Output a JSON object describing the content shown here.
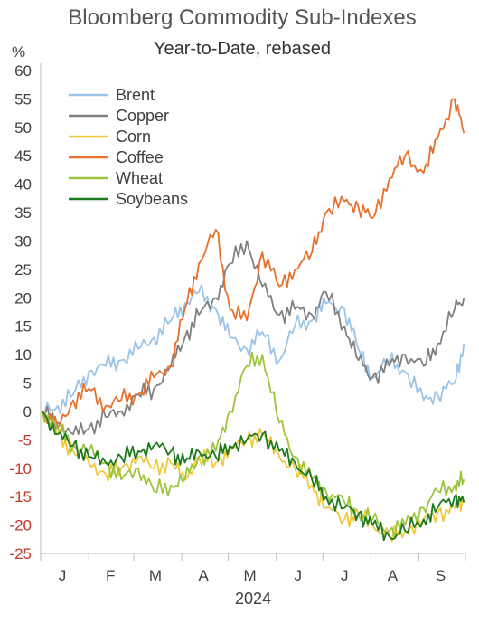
{
  "chart_data": {
    "type": "line",
    "title": "Bloomberg Commodity Sub-Indexes",
    "subtitle": "Year-to-Date, rebased",
    "ylabel": "%",
    "xlabel": "2024",
    "ylim": [
      -25,
      60
    ],
    "yticks": [
      60,
      55,
      50,
      45,
      40,
      35,
      30,
      25,
      20,
      15,
      10,
      5,
      0,
      -5,
      -10,
      -15,
      -20,
      -25
    ],
    "x_ticks": [
      "J",
      "F",
      "M",
      "A",
      "M",
      "J",
      "J",
      "A",
      "S"
    ],
    "x_label": "2024",
    "legend_position": "top-left",
    "grid": false,
    "x": [
      "2024-01-02",
      "2024-01-12",
      "2024-01-22",
      "2024-02-01",
      "2024-02-12",
      "2024-02-22",
      "2024-03-04",
      "2024-03-14",
      "2024-03-25",
      "2024-04-03",
      "2024-04-12",
      "2024-04-23",
      "2024-05-02",
      "2024-05-13",
      "2024-05-23",
      "2024-06-03",
      "2024-06-13",
      "2024-06-24",
      "2024-07-03",
      "2024-07-15",
      "2024-07-24",
      "2024-08-02",
      "2024-08-13",
      "2024-08-23",
      "2024-09-04",
      "2024-09-13",
      "2024-09-24",
      "2024-09-30"
    ],
    "series": [
      {
        "name": "Brent",
        "color": "#9cc3e8",
        "values": [
          0,
          1,
          3,
          7,
          8,
          9,
          11,
          13,
          16,
          19,
          21,
          18,
          13,
          11,
          14,
          9,
          15,
          16,
          19,
          18,
          11,
          6,
          9,
          7,
          2,
          3,
          5,
          12
        ]
      },
      {
        "name": "Copper",
        "color": "#808080",
        "values": [
          0,
          -2,
          -4,
          -3,
          -1,
          0,
          3,
          4,
          8,
          13,
          17,
          20,
          26,
          30,
          22,
          17,
          18,
          17,
          21,
          15,
          9,
          6,
          8,
          10,
          8,
          12,
          18,
          20
        ]
      },
      {
        "name": "Corn",
        "color": "#f0c93a",
        "values": [
          0,
          -4,
          -7,
          -9,
          -11,
          -10,
          -8,
          -10,
          -9,
          -12,
          -8,
          -9,
          -7,
          -5,
          -4,
          -8,
          -10,
          -13,
          -17,
          -19,
          -18,
          -20,
          -22,
          -21,
          -19,
          -18,
          -17,
          -16
        ]
      },
      {
        "name": "Coffee",
        "color": "#e8702a",
        "values": [
          0,
          -3,
          2,
          4,
          1,
          2,
          3,
          6,
          8,
          18,
          26,
          32,
          18,
          16,
          28,
          22,
          25,
          28,
          35,
          37,
          36,
          34,
          41,
          45,
          42,
          48,
          55,
          49
        ]
      },
      {
        "name": "Wheat",
        "color": "#9cc43c",
        "values": [
          0,
          -3,
          -6,
          -7,
          -9,
          -12,
          -10,
          -14,
          -13,
          -12,
          -8,
          -7,
          0,
          8,
          10,
          -2,
          -8,
          -12,
          -14,
          -16,
          -18,
          -19,
          -21,
          -20,
          -17,
          -14,
          -13,
          -12
        ]
      },
      {
        "name": "Soybeans",
        "color": "#1e7a1e",
        "values": [
          0,
          -4,
          -6,
          -8,
          -9,
          -8,
          -7,
          -6,
          -7,
          -9,
          -7,
          -8,
          -6,
          -5,
          -4,
          -7,
          -9,
          -12,
          -15,
          -17,
          -18,
          -20,
          -22,
          -21,
          -19,
          -17,
          -15,
          -16
        ]
      }
    ]
  }
}
